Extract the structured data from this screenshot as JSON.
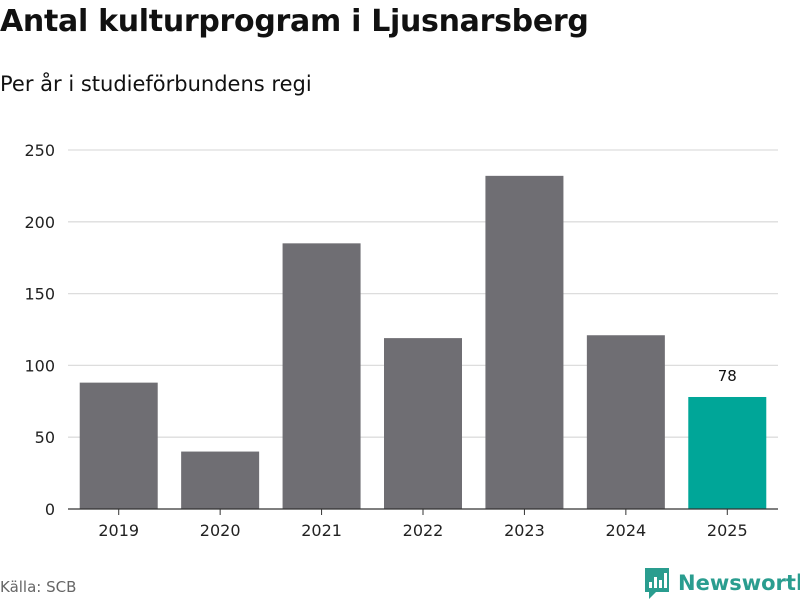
{
  "header": {
    "title": "Antal kulturprogram i Ljusnarsberg",
    "subtitle": "Per år i studieförbundens regi"
  },
  "footer": {
    "source": "Källa: SCB",
    "brand": "Newsworthy"
  },
  "colors": {
    "bar": "#6f6e73",
    "highlight": "#00a698",
    "grid": "#dddddd",
    "axis": "#333333",
    "brand": "#2a9d8f"
  },
  "chart_data": {
    "type": "bar",
    "title": "Antal kulturprogram i Ljusnarsberg",
    "subtitle": "Per år i studieförbundens regi",
    "categories": [
      "2019",
      "2020",
      "2021",
      "2022",
      "2023",
      "2024",
      "2025"
    ],
    "values": [
      88,
      40,
      185,
      119,
      232,
      121,
      78
    ],
    "highlight_index": 6,
    "data_labels": [
      {
        "index": 6,
        "text": "78"
      }
    ],
    "ylim": [
      0,
      250
    ],
    "yticks": [
      0,
      50,
      100,
      150,
      200,
      250
    ],
    "grid": true,
    "legend": "none",
    "xlabel": "",
    "ylabel": ""
  }
}
